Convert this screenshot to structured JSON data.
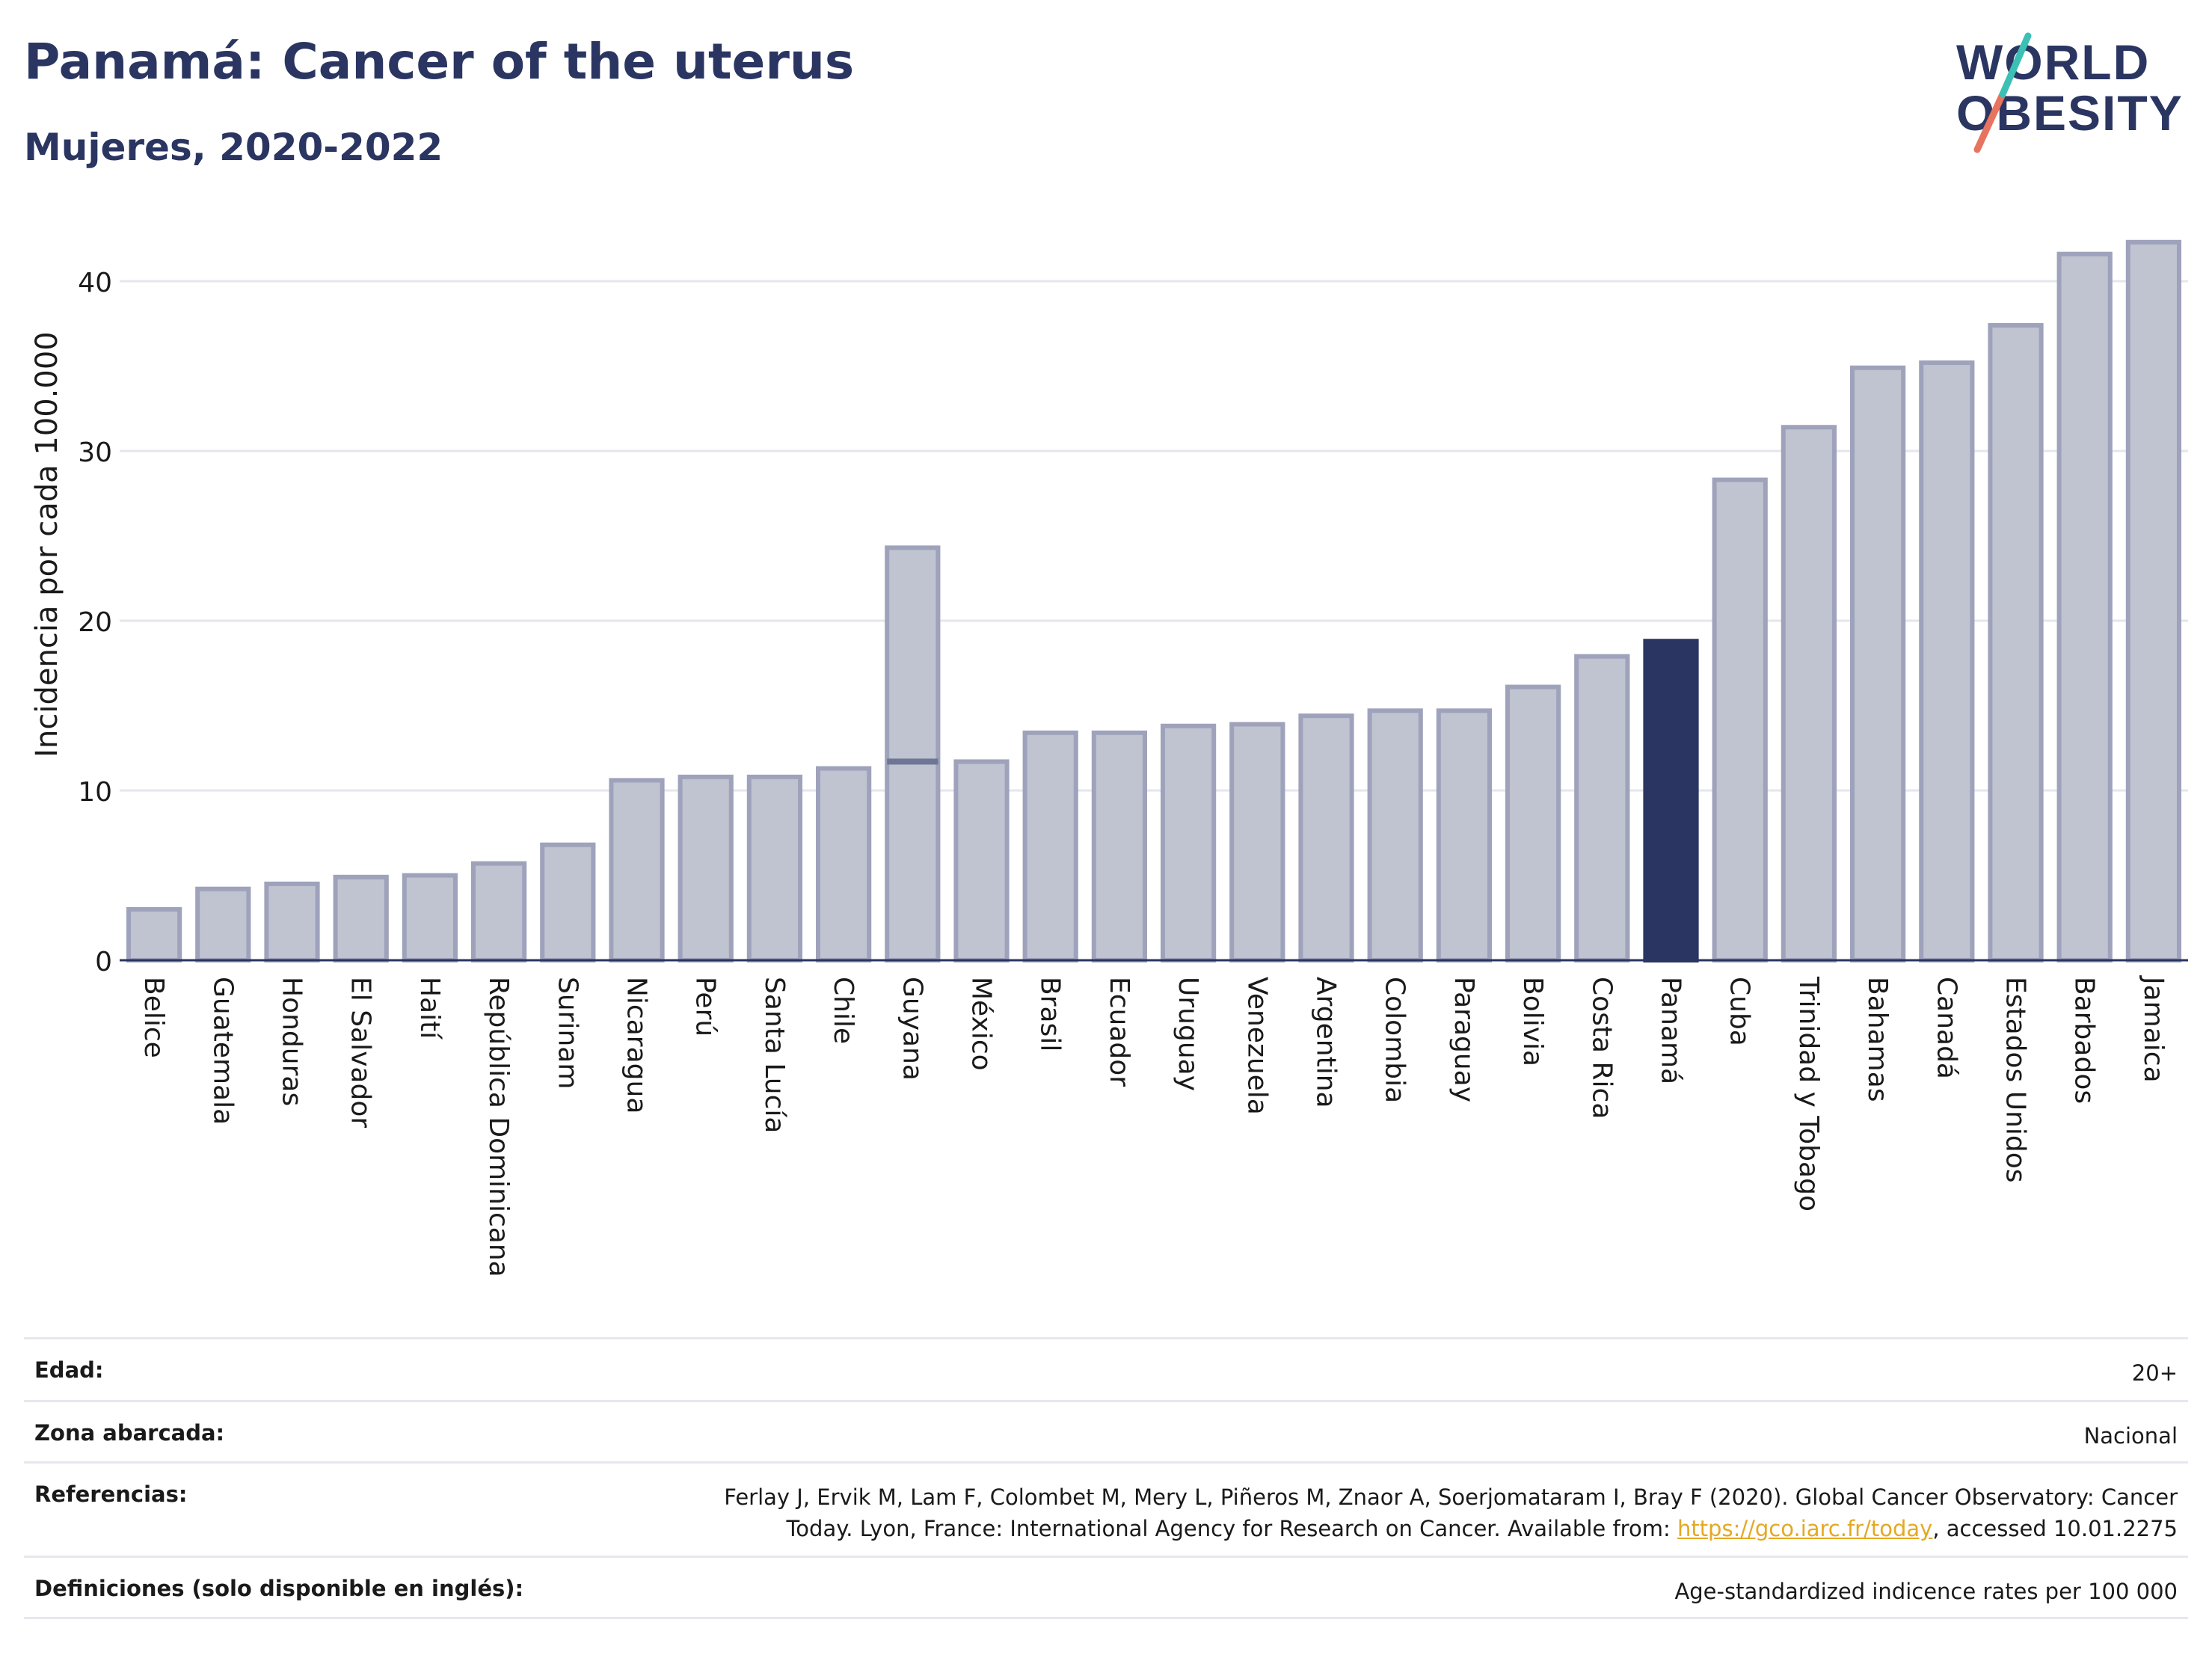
{
  "header": {
    "title": "Panamá: Cancer of the uterus",
    "subtitle": "Mujeres, 2020-2022"
  },
  "logo": {
    "line1": "WORLD",
    "line2": "OBESITY"
  },
  "chart_data": {
    "type": "bar",
    "ylabel": "Incidencia por cada 100.000",
    "xlabel": "",
    "ylim": [
      0,
      42.5
    ],
    "yticks": [
      0,
      10,
      20,
      30,
      40
    ],
    "grid": true,
    "categories": [
      "Belice",
      "Guatemala",
      "Honduras",
      "El Salvador",
      "Haití",
      "República Dominicana",
      "Surinam",
      "Nicaragua",
      "Perú",
      "Santa Lucía",
      "Chile",
      "Guyana",
      "México",
      "Brasil",
      "Ecuador",
      "Uruguay",
      "Venezuela",
      "Argentina",
      "Colombia",
      "Paraguay",
      "Bolivia",
      "Costa Rica",
      "Panamá",
      "Cuba",
      "Trinidad y Tobago",
      "Bahamas",
      "Canadá",
      "Estados Unidos",
      "Barbados",
      "Jamaica"
    ],
    "values": [
      3.0,
      4.2,
      4.5,
      4.9,
      5.0,
      5.7,
      6.8,
      10.6,
      10.8,
      10.8,
      11.3,
      24.3,
      11.7,
      13.4,
      13.4,
      13.8,
      13.9,
      14.4,
      14.7,
      14.7,
      16.1,
      17.9,
      18.8,
      28.3,
      31.4,
      34.9,
      35.2,
      37.4,
      41.6,
      42.3
    ],
    "guyana_marker": 11.7,
    "highlight": "Panamá",
    "colors": {
      "bar": "#c0c3d0",
      "bar_stroke": "#9ea2bb",
      "highlight": "#2a3561",
      "grid": "#e4e6ee",
      "axis": "#2a3561"
    }
  },
  "meta": {
    "age_label": "Edad:",
    "age_value": "20+",
    "area_label": "Zona abarcada:",
    "area_value": "Nacional",
    "ref_label": "Referencias:",
    "ref_line1": "Ferlay J, Ervik M, Lam F, Colombet M, Mery L, Piñeros M, Znaor A, Soerjomataram I, Bray F (2020). Global Cancer Observatory: Cancer",
    "ref_line2_pre": "Today. Lyon, France: International Agency for Research on Cancer. Available from: ",
    "ref_link": "https://gco.iarc.fr/today",
    "ref_line2_post": ", accessed 10.01.2275",
    "def_label": "Definiciones (solo disponible en inglés):",
    "def_value": "Age-standardized indicence rates per 100 000"
  }
}
